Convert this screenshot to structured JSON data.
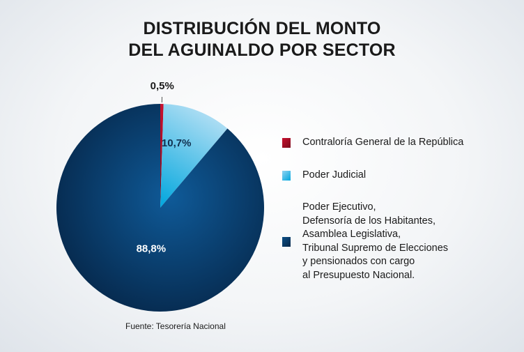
{
  "chart_data": {
    "type": "pie",
    "title_lines": [
      "DISTRIBUCIÓN DEL MONTO",
      "DEL AGUINALDO POR SECTOR"
    ],
    "slices": [
      {
        "label": "Contraloría General de la República",
        "value": 0.5,
        "value_label": "0,5%",
        "color": "#c8102e",
        "color_dark": "#7a0c1c"
      },
      {
        "label": "Poder Judicial",
        "value": 10.7,
        "value_label": "10,7%",
        "color": "#8fd3f2",
        "color_dark": "#00a6dd"
      },
      {
        "label": "Poder Ejecutivo,\nDefensoría de los Habitantes,\nAsamblea Legislativa,\nTribunal Supremo de Elecciones\ny pensionados con cargo\nal Presupuesto Nacional.",
        "value": 88.8,
        "value_label": "88,8%",
        "color": "#0d4f86",
        "color_dark": "#07284a"
      }
    ],
    "legend_position": "right",
    "source": "Fuente: Tesorería Nacional"
  }
}
